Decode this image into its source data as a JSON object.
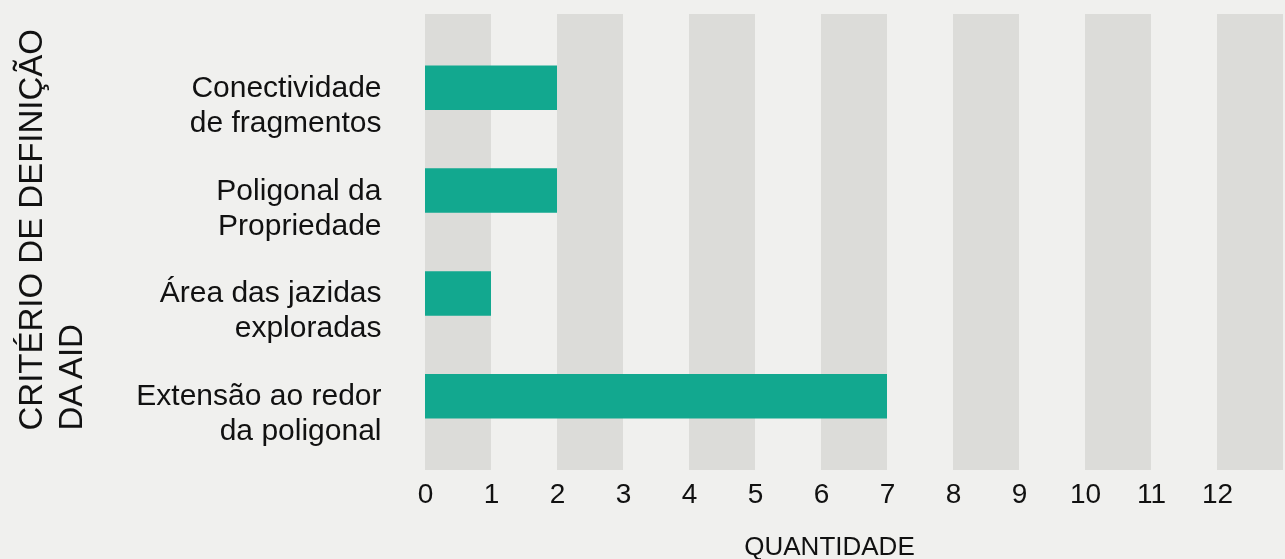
{
  "chart_data": {
    "type": "bar",
    "orientation": "horizontal",
    "categories": [
      "Conectividade de fragmentos",
      "Poligonal da Propriedade",
      "Área das jazidas exploradas",
      "Extensão ao redor da poligonal"
    ],
    "values": [
      2,
      2,
      1,
      7
    ],
    "color": "#12a88f",
    "xlabel": "QUANTIDADE",
    "ylabel": "CRITÉRIO DE DEFINIÇÃO DA AID",
    "xlim": [
      0,
      13
    ],
    "xticks": [
      0,
      1,
      2,
      3,
      4,
      5,
      6,
      7,
      8,
      9,
      10,
      11,
      12
    ],
    "grid": false,
    "bands": [
      {
        "axis": "x",
        "from": 0,
        "to": 1,
        "color": "#dcdcd9"
      },
      {
        "axis": "x",
        "from": 2,
        "to": 3,
        "color": "#dcdcd9"
      },
      {
        "axis": "x",
        "from": 4,
        "to": 5,
        "color": "#dcdcd9"
      },
      {
        "axis": "x",
        "from": 6,
        "to": 7,
        "color": "#dcdcd9"
      },
      {
        "axis": "x",
        "from": 8,
        "to": 9,
        "color": "#dcdcd9"
      },
      {
        "axis": "x",
        "from": 10,
        "to": 11,
        "color": "#dcdcd9"
      },
      {
        "axis": "x",
        "from": 12,
        "to": 13,
        "color": "#dcdcd9"
      }
    ]
  }
}
